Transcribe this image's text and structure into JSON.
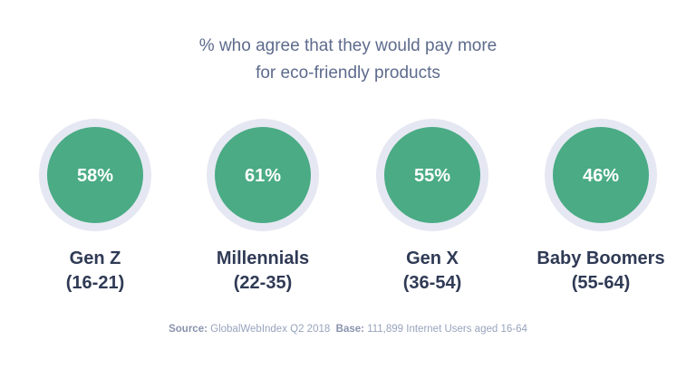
{
  "chart_data": {
    "type": "bubble-percent",
    "title_lines": [
      "% who agree that they would pay more",
      "for eco-friendly products"
    ],
    "categories": [
      {
        "name": "Gen Z",
        "range": "(16-21)",
        "value": 58,
        "label": "58%"
      },
      {
        "name": "Millennials",
        "range": "(22-35)",
        "value": 61,
        "label": "61%"
      },
      {
        "name": "Gen X",
        "range": "(36-54)",
        "value": 55,
        "label": "55%"
      },
      {
        "name": "Baby Boomers",
        "range": "(55-64)",
        "value": 46,
        "label": "46%"
      }
    ],
    "colors": {
      "fill": "#4aab84",
      "ring": "#e5e8f2",
      "label": "#2f3a55"
    }
  },
  "footer": {
    "source_label": "Source:",
    "source_value": "GlobalWebIndex Q2 2018",
    "base_label": "Base:",
    "base_value": "111,899 Internet Users aged 16-64"
  }
}
